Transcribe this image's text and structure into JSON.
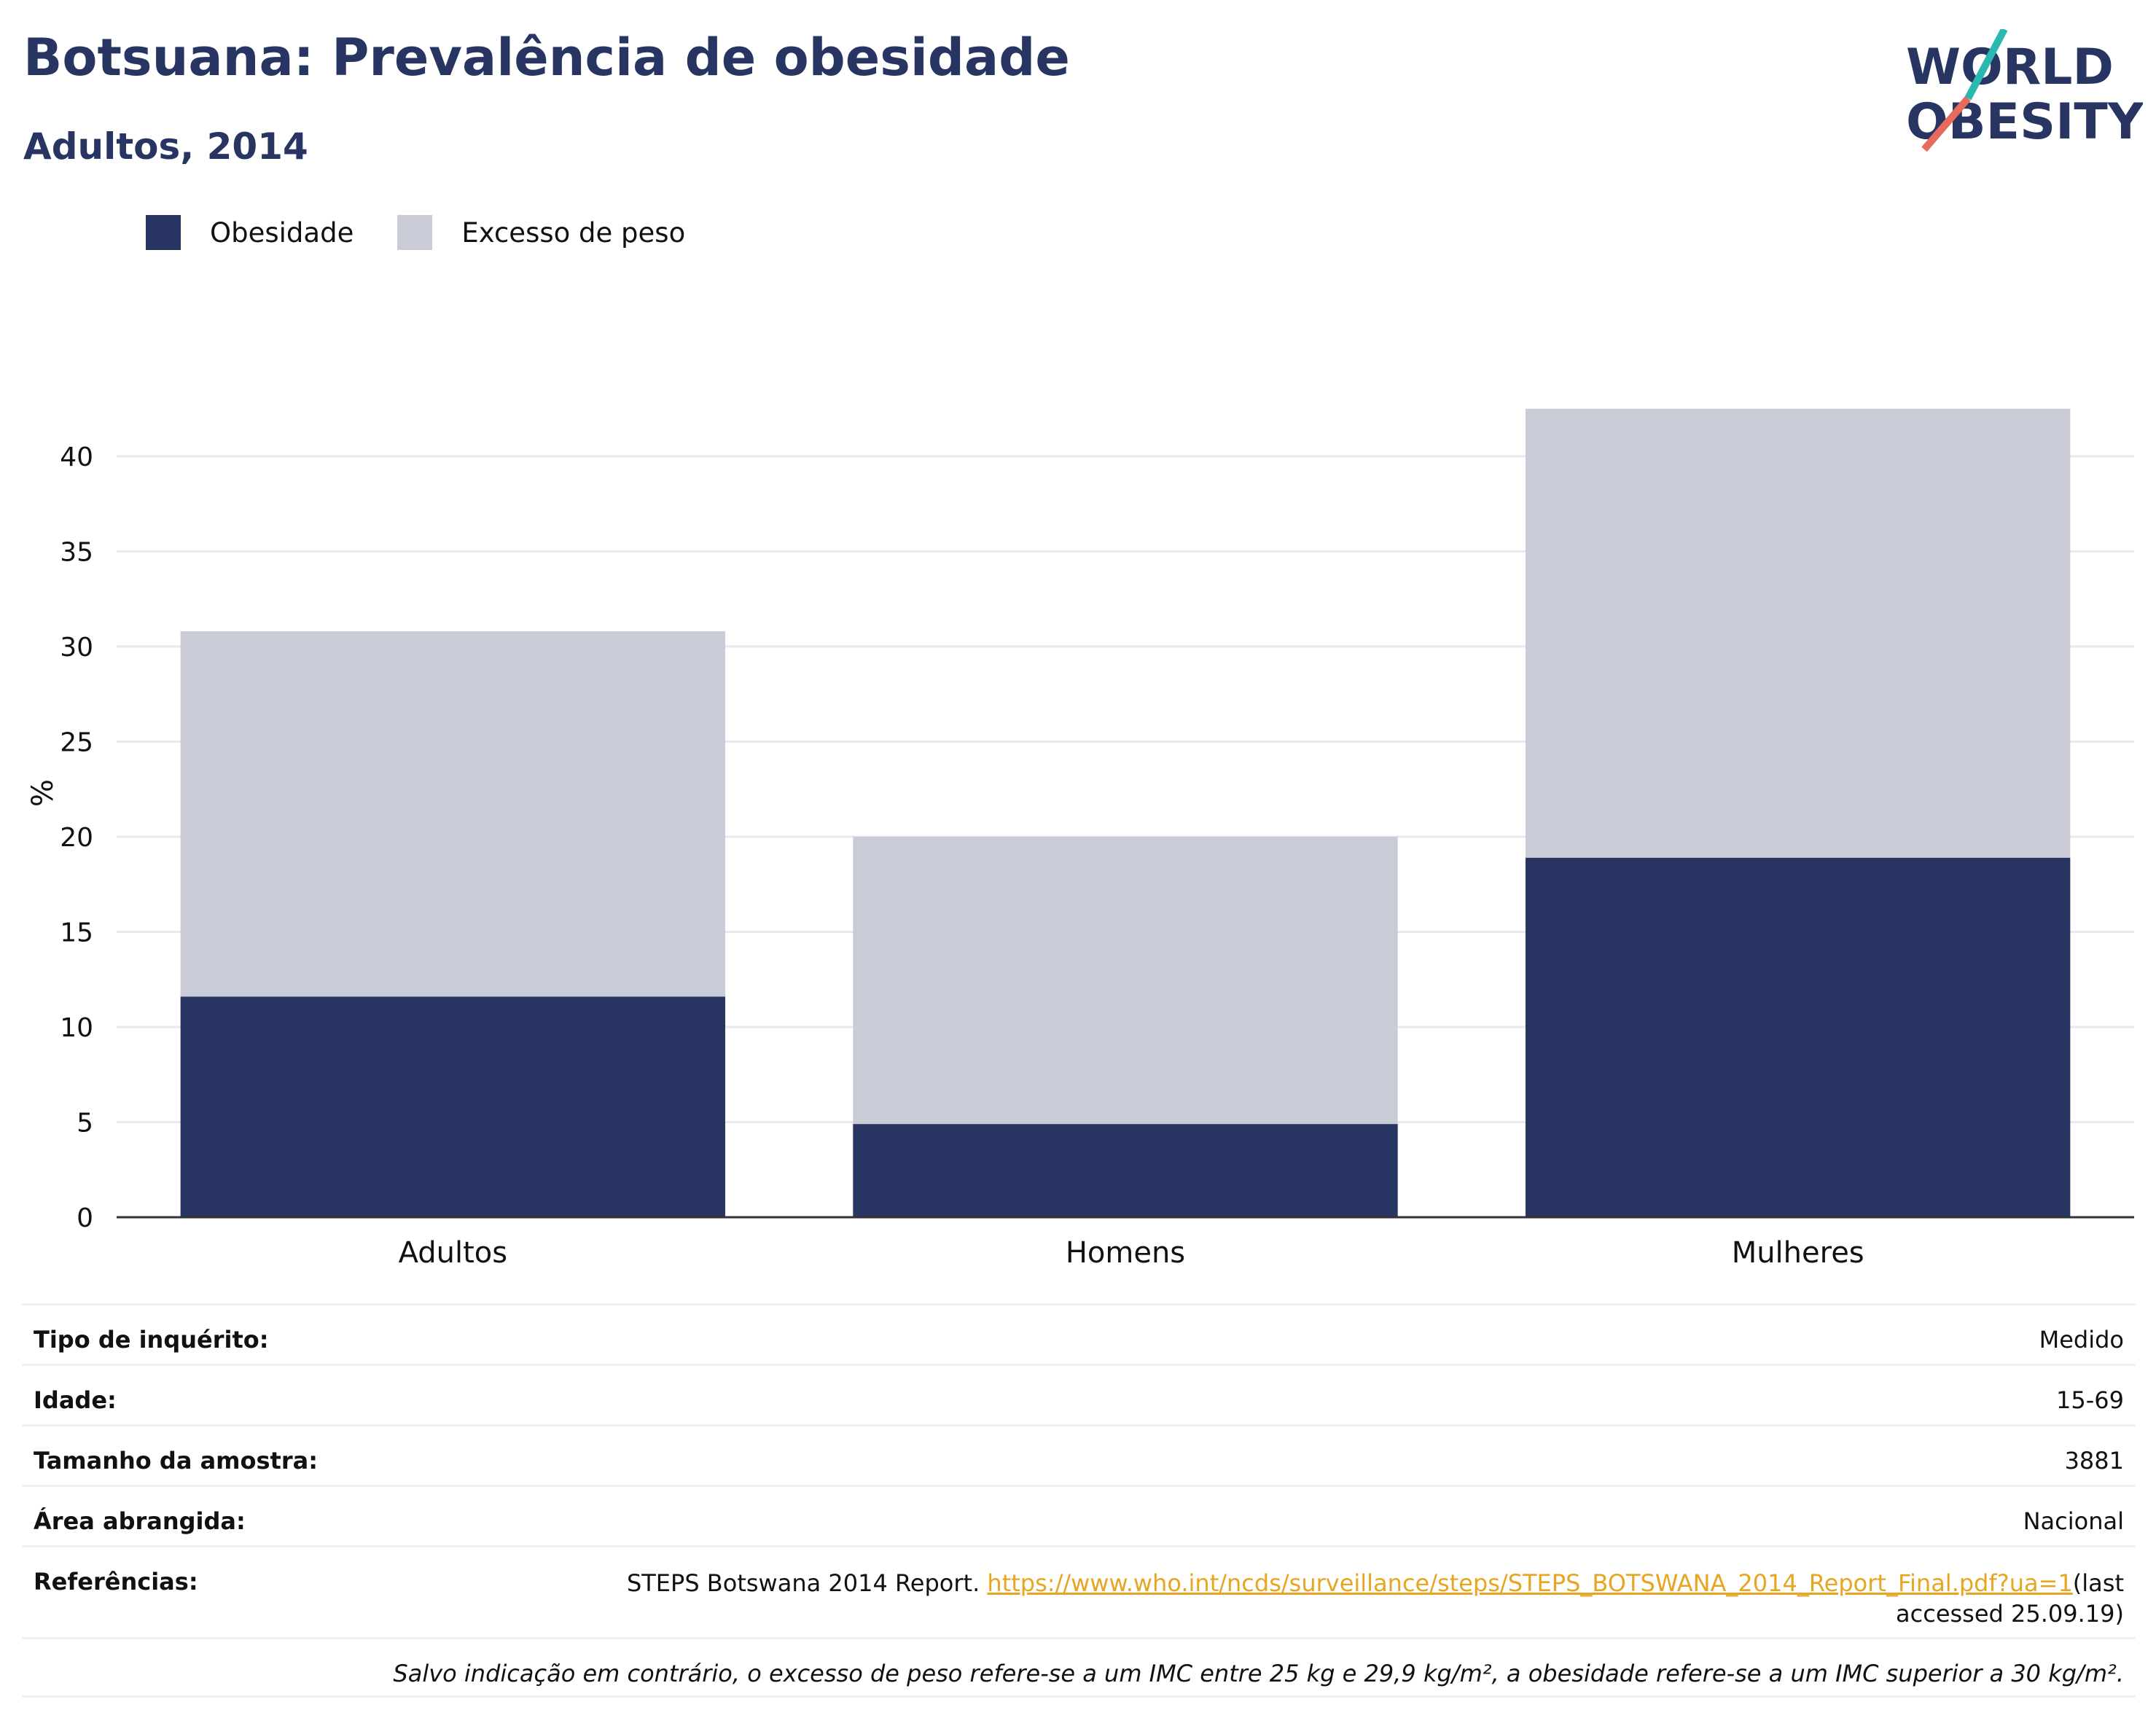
{
  "header": {
    "title": "Botsuana: Prevalência de obesidade",
    "subtitle": "Adultos, 2014"
  },
  "logo": {
    "line1": "WORLD",
    "line2": "OBESITY"
  },
  "colors": {
    "obesity": "#283562",
    "overweight": "#c9cbd7",
    "link": "#e8a521",
    "text": "#283562"
  },
  "chart_data": {
    "type": "bar",
    "stacked": true,
    "categories": [
      "Adultos",
      "Homens",
      "Mulheres"
    ],
    "series": [
      {
        "name": "Obesidade",
        "values": [
          11.6,
          4.9,
          18.9
        ]
      },
      {
        "name": "Excesso de peso",
        "values": [
          19.2,
          15.1,
          23.6
        ]
      }
    ],
    "ylabel": "%",
    "ylim": [
      0,
      44
    ],
    "yticks": [
      0,
      5,
      10,
      15,
      20,
      25,
      30,
      35,
      40
    ],
    "grid": true,
    "legend": "top-left"
  },
  "info": {
    "survey_type": {
      "label": "Tipo de inquérito:",
      "value": "Medido"
    },
    "age": {
      "label": "Idade:",
      "value": "15-69"
    },
    "sample": {
      "label": "Tamanho da amostra:",
      "value": "3881"
    },
    "area": {
      "label": "Área abrangida:",
      "value": "Nacional"
    },
    "refs": {
      "label": "Referências:",
      "text": "STEPS Botswana 2014 Report. ",
      "link": "https://www.who.int/ncds/surveillance/steps/STEPS_BOTSWANA_2014_Report_Final.pdf?ua=1",
      "suffix": "(last accessed 25.09.19)"
    },
    "note": "Salvo indicação em contrário, o excesso de peso refere-se a um IMC entre 25 kg e 29,9 kg/m², a obesidade refere-se a um IMC superior a 30 kg/m²."
  }
}
